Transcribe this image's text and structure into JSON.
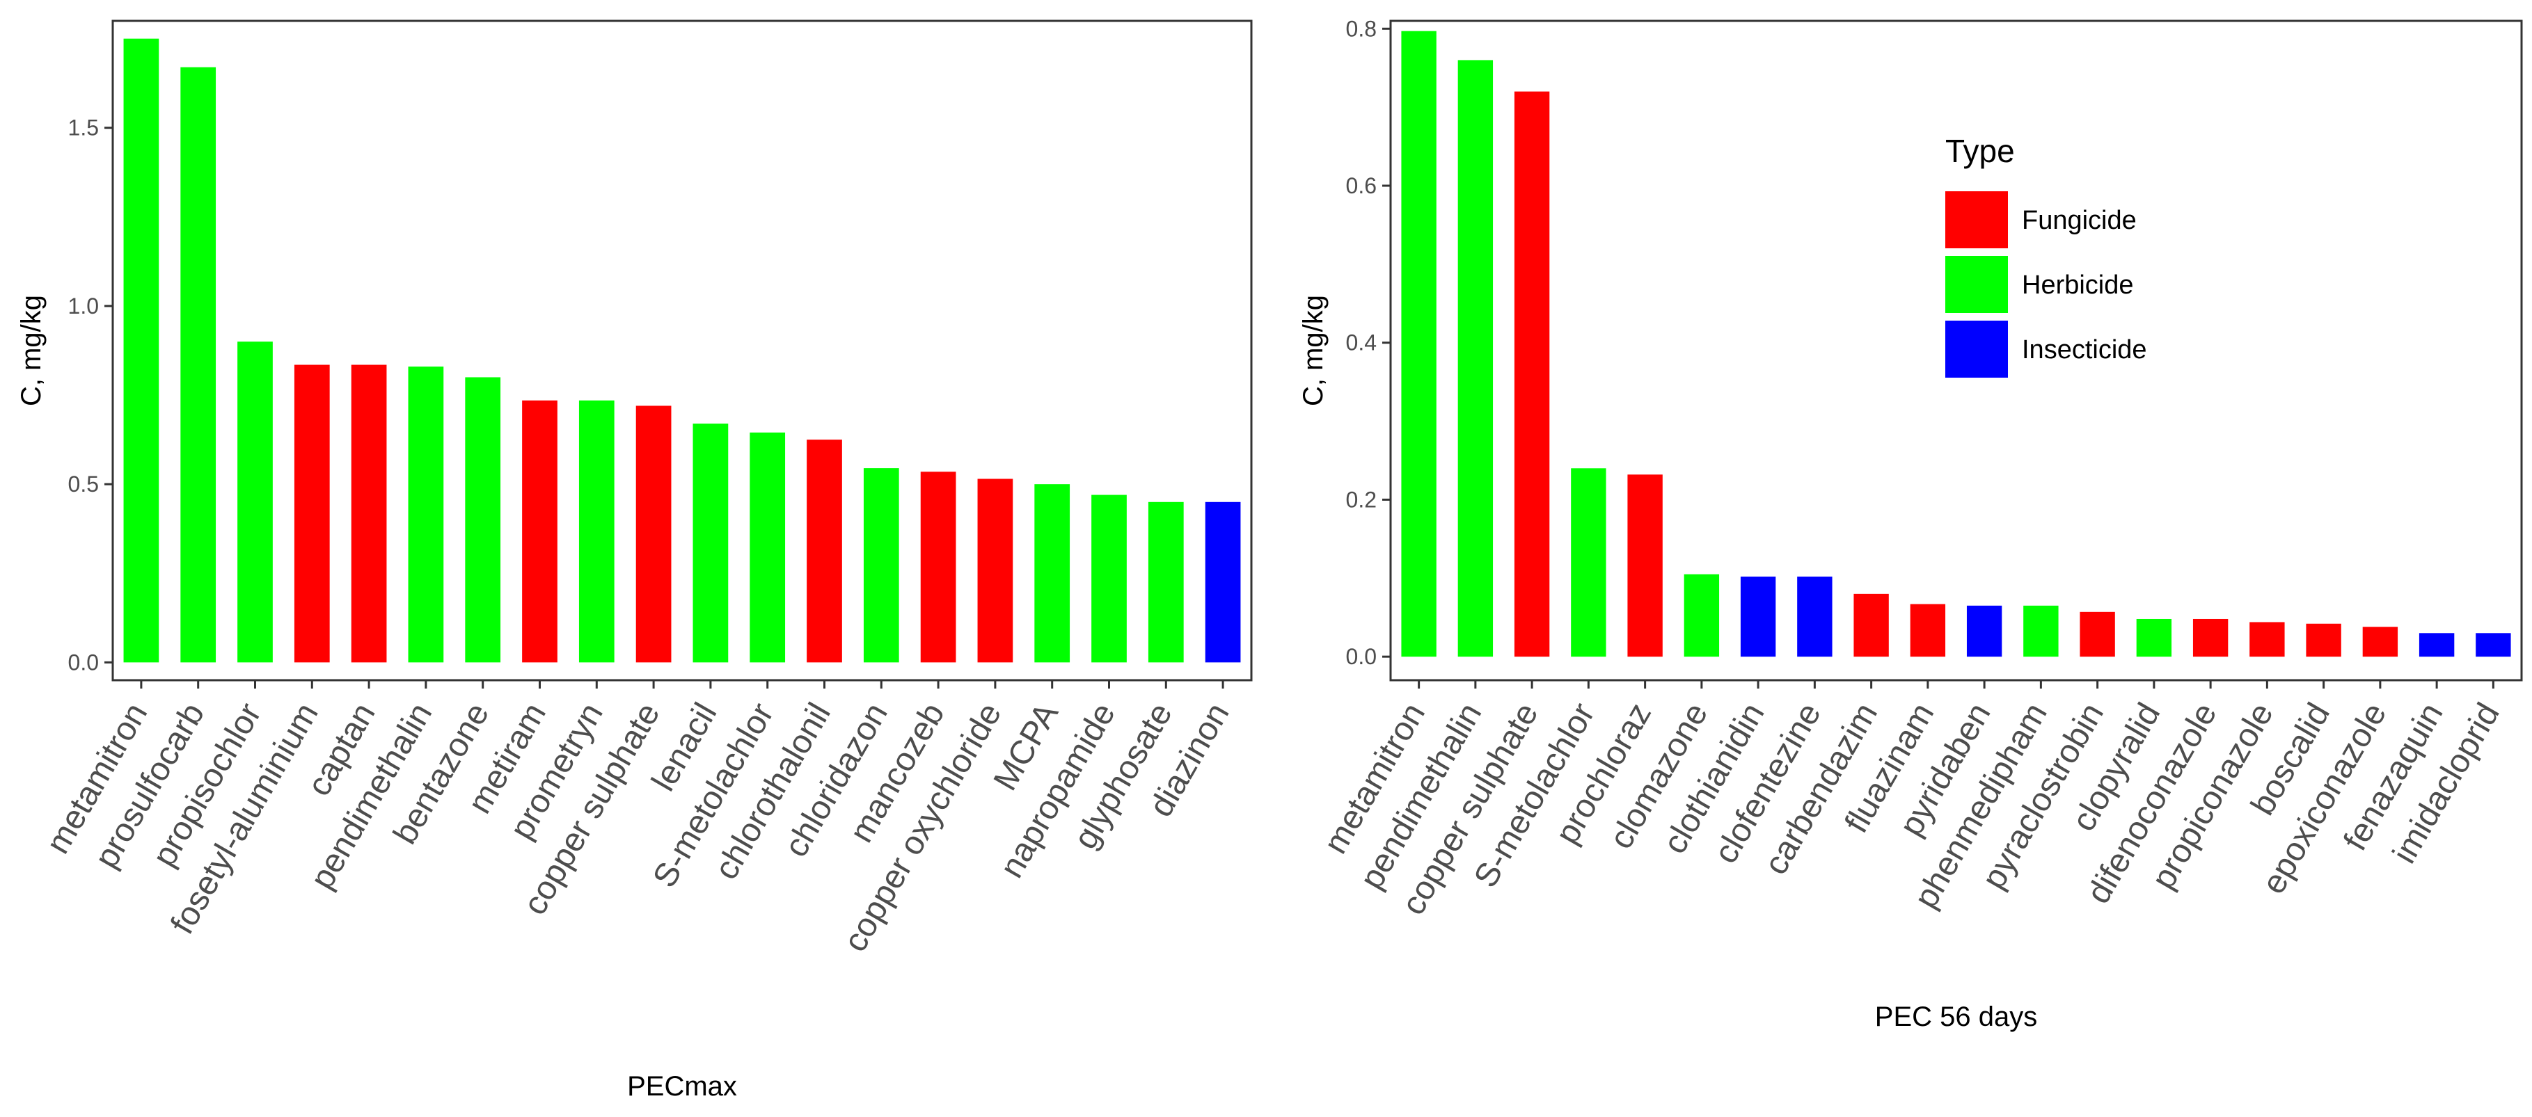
{
  "chart_data": [
    {
      "type": "bar",
      "title": "",
      "xlabel": "PECmax",
      "ylabel": "C, mg/kg",
      "ylim": [
        -0.05,
        1.8
      ],
      "yticks": [
        0.0,
        0.5,
        1.0,
        1.5
      ],
      "ytick_labels": [
        "0.0",
        "0.5",
        "1.0",
        "1.5"
      ],
      "categories": [
        "metamitron",
        "prosulfocarb",
        "propisochlor",
        "fosetyl-aluminium",
        "captan",
        "pendimethalin",
        "bentazone",
        "metiram",
        "prometryn",
        "copper sulphate",
        "lenacil",
        "S-metolachlor",
        "chlorothalonil",
        "chloridazon",
        "mancozeb",
        "copper oxychloride",
        "MCPA",
        "napropamide",
        "glyphosate",
        "diazinon"
      ],
      "values": [
        1.75,
        1.67,
        0.9,
        0.835,
        0.835,
        0.83,
        0.8,
        0.735,
        0.735,
        0.72,
        0.67,
        0.645,
        0.625,
        0.545,
        0.535,
        0.515,
        0.5,
        0.47,
        0.45,
        0.45
      ],
      "types": [
        "Herbicide",
        "Herbicide",
        "Herbicide",
        "Fungicide",
        "Fungicide",
        "Herbicide",
        "Herbicide",
        "Fungicide",
        "Herbicide",
        "Fungicide",
        "Herbicide",
        "Herbicide",
        "Fungicide",
        "Herbicide",
        "Fungicide",
        "Fungicide",
        "Herbicide",
        "Herbicide",
        "Herbicide",
        "Insecticide"
      ],
      "grid": false
    },
    {
      "type": "bar",
      "title": "",
      "xlabel": "PEC 56 days",
      "ylabel": "C, mg/kg",
      "ylim": [
        -0.03,
        0.81
      ],
      "yticks": [
        0.0,
        0.2,
        0.4,
        0.6,
        0.8
      ],
      "ytick_labels": [
        "0.0",
        "0.2",
        "0.4",
        "0.6",
        "0.8"
      ],
      "categories": [
        "metamitron",
        "pendimethalin",
        "copper sulphate",
        "S-metolachlor",
        "prochloraz",
        "clomazone",
        "clothianidin",
        "clofentezine",
        "carbendazim",
        "fluazinam",
        "pyridaben",
        "phenmedipham",
        "pyraclostrobin",
        "clopyralid",
        "difenoconazole",
        "propiconazole",
        "boscalid",
        "epoxiconazole",
        "fenazaquin",
        "imidacloprid"
      ],
      "values": [
        0.797,
        0.76,
        0.72,
        0.24,
        0.232,
        0.105,
        0.102,
        0.102,
        0.08,
        0.067,
        0.065,
        0.065,
        0.057,
        0.048,
        0.048,
        0.044,
        0.042,
        0.038,
        0.03,
        0.03
      ],
      "types": [
        "Herbicide",
        "Herbicide",
        "Fungicide",
        "Herbicide",
        "Fungicide",
        "Herbicide",
        "Insecticide",
        "Insecticide",
        "Fungicide",
        "Fungicide",
        "Insecticide",
        "Herbicide",
        "Fungicide",
        "Herbicide",
        "Fungicide",
        "Fungicide",
        "Fungicide",
        "Fungicide",
        "Insecticide",
        "Insecticide"
      ],
      "grid": false,
      "legend": {
        "title": "Type",
        "placement": "top-right",
        "entries": [
          "Fungicide",
          "Herbicide",
          "Insecticide"
        ]
      }
    }
  ],
  "colors": {
    "Fungicide": "#ff0000",
    "Herbicide": "#00ff00",
    "Insecticide": "#0000ff",
    "axis": "#333333",
    "tick_text": "#4d4d4d"
  }
}
